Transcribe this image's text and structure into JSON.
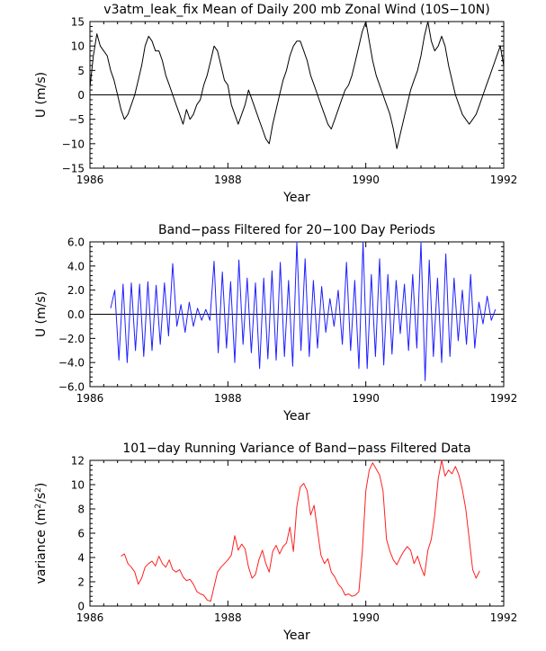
{
  "chart_data": [
    {
      "type": "line",
      "title": "v3atm_leak_fix Mean of Daily 200 mb Zonal Wind (10S−10N)",
      "xlabel": "Year",
      "ylabel": "U (m/s)",
      "xlim": [
        1986,
        1992
      ],
      "ylim": [
        -15,
        15
      ],
      "xticks": [
        "1986",
        "1988",
        "1990",
        "1992"
      ],
      "yticks": [
        "15",
        "10",
        "5",
        "0",
        "−5",
        "−10",
        "−15"
      ],
      "ytick_values": [
        15,
        10,
        5,
        0,
        -5,
        -10,
        -15
      ],
      "zero_line": true,
      "color": "#000000",
      "series": [
        {
          "x": [
            1986.0,
            1986.05,
            1986.1,
            1986.15,
            1986.2,
            1986.25,
            1986.3,
            1986.35,
            1986.4,
            1986.45,
            1986.5,
            1986.55,
            1986.6,
            1986.65,
            1986.7,
            1986.75,
            1986.8,
            1986.85,
            1986.9,
            1986.95,
            1987.0,
            1987.05,
            1987.1,
            1987.15,
            1987.2,
            1987.25,
            1987.3,
            1987.35,
            1987.4,
            1987.45,
            1987.5,
            1987.55,
            1987.6,
            1987.65,
            1987.7,
            1987.75,
            1987.8,
            1987.85,
            1987.9,
            1987.95,
            1988.0,
            1988.05,
            1988.1,
            1988.15,
            1988.2,
            1988.25,
            1988.3,
            1988.35,
            1988.4,
            1988.45,
            1988.5,
            1988.55,
            1988.6,
            1988.65,
            1988.7,
            1988.75,
            1988.8,
            1988.85,
            1988.9,
            1988.95,
            1989.0,
            1989.05,
            1989.1,
            1989.15,
            1989.2,
            1989.25,
            1989.3,
            1989.35,
            1989.4,
            1989.45,
            1989.5,
            1989.55,
            1989.6,
            1989.65,
            1989.7,
            1989.75,
            1989.8,
            1989.85,
            1989.9,
            1989.95,
            1990.0,
            1990.05,
            1990.1,
            1990.15,
            1990.2,
            1990.25,
            1990.3,
            1990.35,
            1990.4,
            1990.45,
            1990.5,
            1990.55,
            1990.6,
            1990.65,
            1990.7,
            1990.75,
            1990.8,
            1990.85,
            1990.9,
            1990.95,
            1991.0,
            1991.05,
            1991.1,
            1991.15,
            1991.2,
            1991.25,
            1991.3,
            1991.35,
            1991.4,
            1991.45,
            1991.5,
            1991.55,
            1991.6,
            1991.65,
            1991.7,
            1991.75,
            1991.8,
            1991.85,
            1991.9,
            1991.95,
            1992.0
          ],
          "y": [
            1.5,
            8,
            12.5,
            10,
            9,
            8,
            5,
            3,
            0,
            -3,
            -5,
            -4,
            -2,
            0,
            3,
            6,
            10,
            12,
            11,
            9,
            9,
            7,
            4,
            2,
            0,
            -2,
            -4,
            -6,
            -3,
            -5,
            -4,
            -2,
            -1,
            2,
            4,
            7,
            10,
            9,
            6,
            3,
            2,
            -2,
            -4,
            -6,
            -4,
            -2,
            1,
            -1,
            -3,
            -5,
            -7,
            -9,
            -10,
            -6,
            -3,
            0,
            3,
            5,
            8,
            10,
            11,
            11,
            9,
            7,
            4,
            2,
            0,
            -2,
            -4,
            -6,
            -7,
            -5,
            -3,
            -1,
            1,
            2,
            4,
            7,
            10,
            13,
            15,
            11,
            7,
            4,
            2,
            0,
            -2,
            -4,
            -7,
            -11,
            -8,
            -5,
            -2,
            1,
            3,
            5,
            8,
            12,
            15,
            11,
            9,
            10,
            12,
            10,
            6,
            3,
            0,
            -2,
            -4,
            -5,
            -6,
            -5,
            -4,
            -2,
            0,
            2,
            4,
            6,
            8,
            10,
            6
          ]
        }
      ]
    },
    {
      "type": "line",
      "title": "Band−pass Filtered for 20−100 Day Periods",
      "xlabel": "Year",
      "ylabel": "U (m/s)",
      "xlim": [
        1986,
        1992
      ],
      "ylim": [
        -6,
        6
      ],
      "xticks": [
        "1986",
        "1988",
        "1990",
        "1992"
      ],
      "yticks": [
        "6.0",
        "4.0",
        "2.0",
        "0.0",
        "−2.0",
        "−4.0",
        "−6.0"
      ],
      "ytick_values": [
        6,
        4,
        2,
        0,
        -2,
        -4,
        -6
      ],
      "zero_line": true,
      "color": "#1f1fff",
      "series": [
        {
          "x": [
            1986.3,
            1986.36,
            1986.42,
            1986.48,
            1986.54,
            1986.6,
            1986.66,
            1986.72,
            1986.78,
            1986.84,
            1986.9,
            1986.96,
            1987.02,
            1987.08,
            1987.14,
            1987.2,
            1987.26,
            1987.32,
            1987.38,
            1987.44,
            1987.5,
            1987.56,
            1987.62,
            1987.68,
            1987.74,
            1987.8,
            1987.86,
            1987.92,
            1987.98,
            1988.04,
            1988.1,
            1988.16,
            1988.22,
            1988.28,
            1988.34,
            1988.4,
            1988.46,
            1988.52,
            1988.58,
            1988.64,
            1988.7,
            1988.76,
            1988.82,
            1988.88,
            1988.94,
            1989.0,
            1989.06,
            1989.12,
            1989.18,
            1989.24,
            1989.3,
            1989.36,
            1989.42,
            1989.48,
            1989.54,
            1989.6,
            1989.66,
            1989.72,
            1989.78,
            1989.84,
            1989.9,
            1989.96,
            1990.02,
            1990.08,
            1990.14,
            1990.2,
            1990.26,
            1990.32,
            1990.38,
            1990.44,
            1990.5,
            1990.56,
            1990.62,
            1990.68,
            1990.74,
            1990.8,
            1990.86,
            1990.92,
            1990.98,
            1991.04,
            1991.1,
            1991.16,
            1991.22,
            1991.28,
            1991.34,
            1991.4,
            1991.46,
            1991.52,
            1991.58,
            1991.64,
            1991.7,
            1991.76,
            1991.82,
            1991.88
          ],
          "y": [
            0.5,
            2,
            -3.8,
            2.5,
            -4,
            2.6,
            -3,
            2.5,
            -3.5,
            2.7,
            -3,
            2.4,
            -2.5,
            2.6,
            -1.8,
            4.2,
            -1,
            0.8,
            -1.5,
            1,
            -1,
            0.5,
            -0.5,
            0.4,
            -0.5,
            4.4,
            -3.2,
            3.5,
            -2.8,
            2.7,
            -4,
            4.5,
            -2.5,
            3,
            -3.2,
            2.6,
            -4.5,
            3,
            -3.7,
            3.6,
            -3.8,
            4.3,
            -3.5,
            2.8,
            -4.3,
            6,
            -3,
            4.6,
            -3.5,
            2.8,
            -2.8,
            2.3,
            -1.5,
            1.3,
            -1,
            2,
            -2.5,
            4.3,
            -3,
            2.8,
            -4.5,
            6,
            -4.5,
            3.3,
            -3.5,
            4.6,
            -4.2,
            3.3,
            -3.3,
            2.8,
            -1.6,
            2.5,
            -3,
            3.3,
            -2.8,
            6,
            -5.5,
            4.5,
            -3.5,
            3,
            -4,
            5,
            -3.5,
            3,
            -2.2,
            2,
            -2.5,
            3.3,
            -2.8,
            1,
            -0.8,
            1.5,
            -0.5,
            0.4
          ]
        }
      ]
    },
    {
      "type": "line",
      "title": "101−day Running Variance of Band−pass Filtered Data",
      "xlabel": "Year",
      "ylabel_prefix": "variance (m",
      "ylabel_mid": "/s",
      "ylabel_suffix": ")",
      "ylabel_sup": "2",
      "xlim": [
        1986,
        1992
      ],
      "ylim": [
        0,
        12
      ],
      "xticks": [
        "1986",
        "1988",
        "1990",
        "1992"
      ],
      "yticks": [
        "12",
        "10",
        "8",
        "6",
        "4",
        "2",
        "0"
      ],
      "ytick_values": [
        12,
        10,
        8,
        6,
        4,
        2,
        0
      ],
      "zero_line": false,
      "color": "#ff1f1f",
      "series": [
        {
          "x": [
            1986.45,
            1986.5,
            1986.55,
            1986.6,
            1986.65,
            1986.7,
            1986.75,
            1986.8,
            1986.85,
            1986.9,
            1986.95,
            1987.0,
            1987.05,
            1987.1,
            1987.15,
            1987.2,
            1987.25,
            1987.3,
            1987.35,
            1987.4,
            1987.45,
            1987.5,
            1987.55,
            1987.6,
            1987.65,
            1987.7,
            1987.75,
            1987.8,
            1987.85,
            1987.9,
            1987.95,
            1988.0,
            1988.05,
            1988.1,
            1988.15,
            1988.2,
            1988.25,
            1988.3,
            1988.35,
            1988.4,
            1988.45,
            1988.5,
            1988.55,
            1988.6,
            1988.65,
            1988.7,
            1988.75,
            1988.8,
            1988.85,
            1988.9,
            1988.95,
            1989.0,
            1989.05,
            1989.1,
            1989.15,
            1989.2,
            1989.25,
            1989.3,
            1989.35,
            1989.4,
            1989.45,
            1989.5,
            1989.55,
            1989.6,
            1989.65,
            1989.7,
            1989.75,
            1989.8,
            1989.85,
            1989.9,
            1989.95,
            1990.0,
            1990.05,
            1990.1,
            1990.15,
            1990.2,
            1990.25,
            1990.3,
            1990.35,
            1990.4,
            1990.45,
            1990.5,
            1990.55,
            1990.6,
            1990.65,
            1990.7,
            1990.75,
            1990.8,
            1990.85,
            1990.9,
            1990.95,
            1991.0,
            1991.05,
            1991.1,
            1991.15,
            1991.2,
            1991.25,
            1991.3,
            1991.35,
            1991.4,
            1991.45,
            1991.5,
            1991.55,
            1991.6,
            1991.65
          ],
          "y": [
            4.1,
            4.3,
            3.5,
            3.2,
            2.8,
            1.8,
            2.3,
            3.2,
            3.5,
            3.7,
            3.3,
            4.1,
            3.5,
            3.2,
            3.8,
            3,
            2.8,
            3,
            2.4,
            2.1,
            2.2,
            1.8,
            1.2,
            1.0,
            0.9,
            0.5,
            0.4,
            1.6,
            2.8,
            3.2,
            3.5,
            3.8,
            4.2,
            5.8,
            4.6,
            5.1,
            4.7,
            3.2,
            2.3,
            2.6,
            3.8,
            4.6,
            3.5,
            2.8,
            4.5,
            5,
            4.3,
            4.9,
            5.2,
            6.5,
            4.5,
            8.2,
            9.8,
            10.1,
            9.5,
            7.5,
            8.3,
            6.2,
            4.2,
            3.5,
            3.9,
            2.8,
            2.4,
            1.8,
            1.5,
            0.9,
            1.0,
            0.8,
            0.9,
            1.2,
            4.5,
            9.5,
            11.2,
            11.8,
            11.3,
            10.8,
            9.5,
            5.5,
            4.5,
            3.8,
            3.4,
            4.0,
            4.5,
            4.9,
            4.6,
            3.5,
            4.1,
            3.2,
            2.5,
            4.6,
            5.5,
            7.5,
            10.5,
            12,
            10.7,
            11.2,
            10.9,
            11.5,
            10.8,
            9.6,
            8.0,
            5.5,
            3.0,
            2.3,
            2.9
          ]
        }
      ]
    }
  ]
}
